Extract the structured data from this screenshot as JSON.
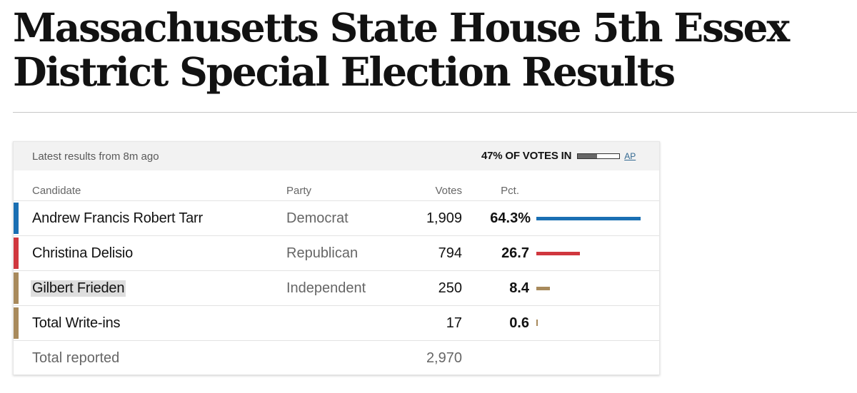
{
  "headline": "Massachusetts State House 5th Essex District Special Election Results",
  "card": {
    "updated": "Latest results from 8m ago",
    "reporting_text": "47% OF VOTES IN",
    "reporting_fraction": 0.47,
    "source": "AP"
  },
  "columns": {
    "candidate": "Candidate",
    "party": "Party",
    "votes": "Votes",
    "pct": "Pct."
  },
  "rows": [
    {
      "candidate": "Andrew Francis Robert Tarr",
      "party": "Democrat",
      "votes": "1,909",
      "pct": "64.3%",
      "pct_value": 64.3,
      "color": "#1a6fb3"
    },
    {
      "candidate": "Christina Delisio",
      "party": "Republican",
      "votes": "794",
      "pct": "26.7",
      "pct_value": 26.7,
      "color": "#d0373e"
    },
    {
      "candidate": "Gilbert Frieden",
      "party": "Independent",
      "votes": "250",
      "pct": "8.4",
      "pct_value": 8.4,
      "color": "#a88a5c"
    },
    {
      "candidate": "Total Write-ins",
      "party": "",
      "votes": "17",
      "pct": "0.6",
      "pct_value": 0.6,
      "color": "#a88a5c"
    }
  ],
  "total": {
    "label": "Total reported",
    "votes": "2,970"
  }
}
